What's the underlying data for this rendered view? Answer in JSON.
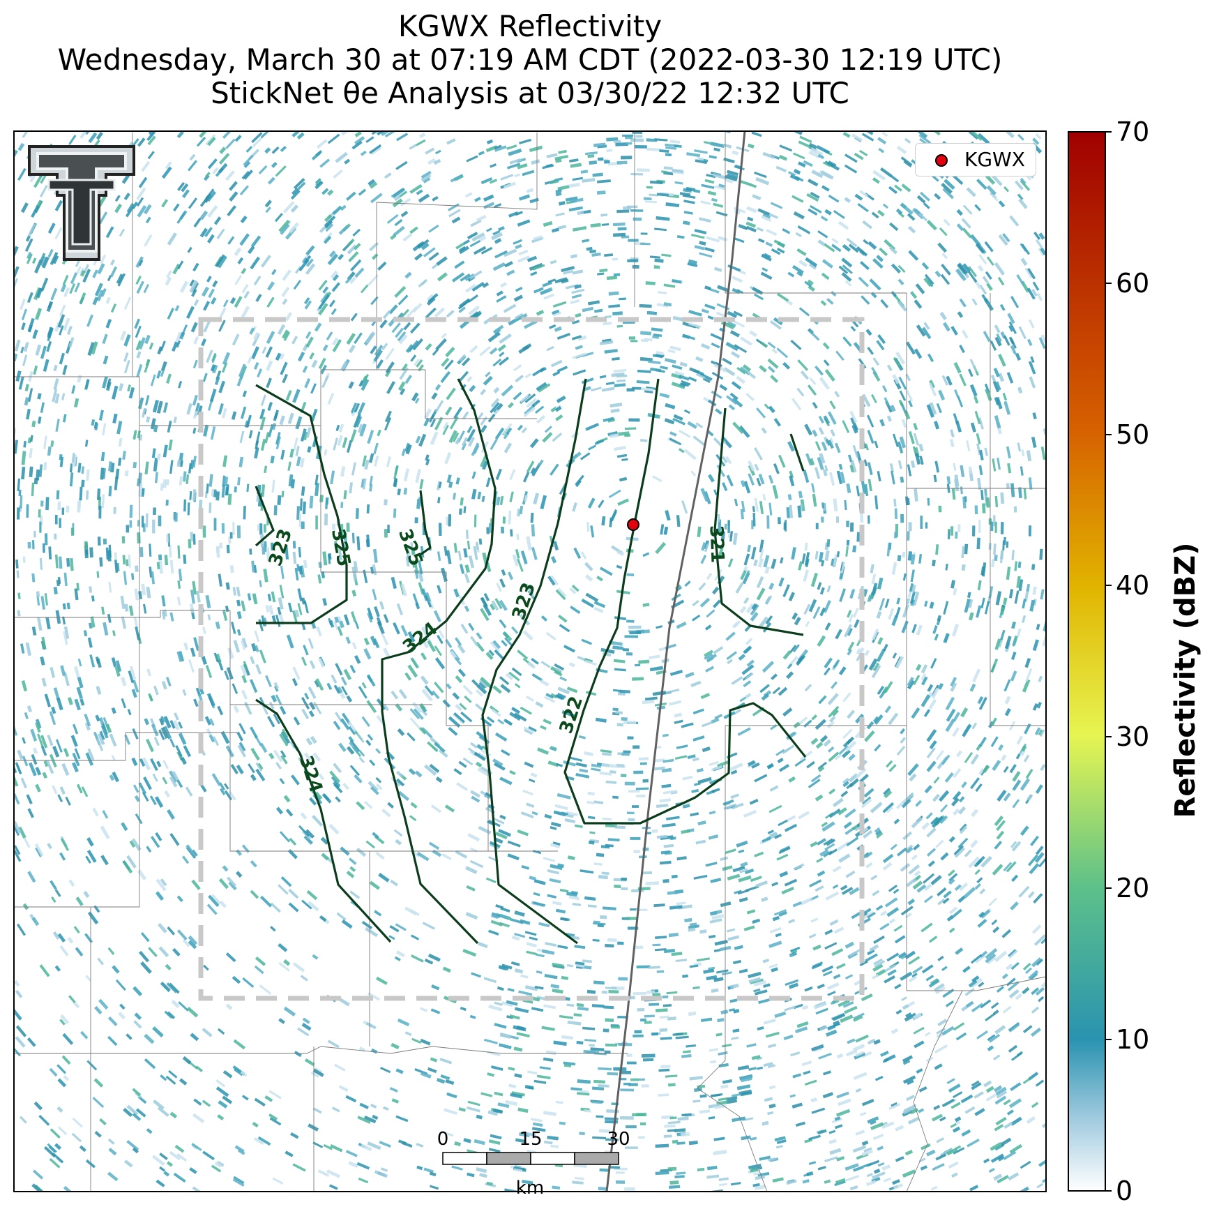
{
  "title": {
    "line1": "KGWX Reflectivity",
    "line2": "Wednesday, March 30 at 07:19 AM CDT (2022-03-30 12:19 UTC)",
    "line3": "StickNet θe Analysis at 03/30/22 12:32 UTC"
  },
  "legend": {
    "label": "KGWX",
    "marker_color": "#e3000f"
  },
  "colorbar": {
    "label": "Reflectivity (dBZ)",
    "ticks": [
      "0",
      "10",
      "20",
      "30",
      "40",
      "50",
      "60",
      "70"
    ],
    "colors": [
      "#ffffff",
      "#2a93b0",
      "#5cc08a",
      "#e6f552",
      "#e1b400",
      "#d66000",
      "#a00000"
    ]
  },
  "scalebar": {
    "ticks": [
      "0",
      "15",
      "30"
    ],
    "unit": "km"
  },
  "contours": {
    "color": "#0b3d1c",
    "labels": [
      "321",
      "322",
      "323",
      "323",
      "324",
      "324",
      "325",
      "325"
    ]
  },
  "logo": "ttu-double-t-logo"
}
